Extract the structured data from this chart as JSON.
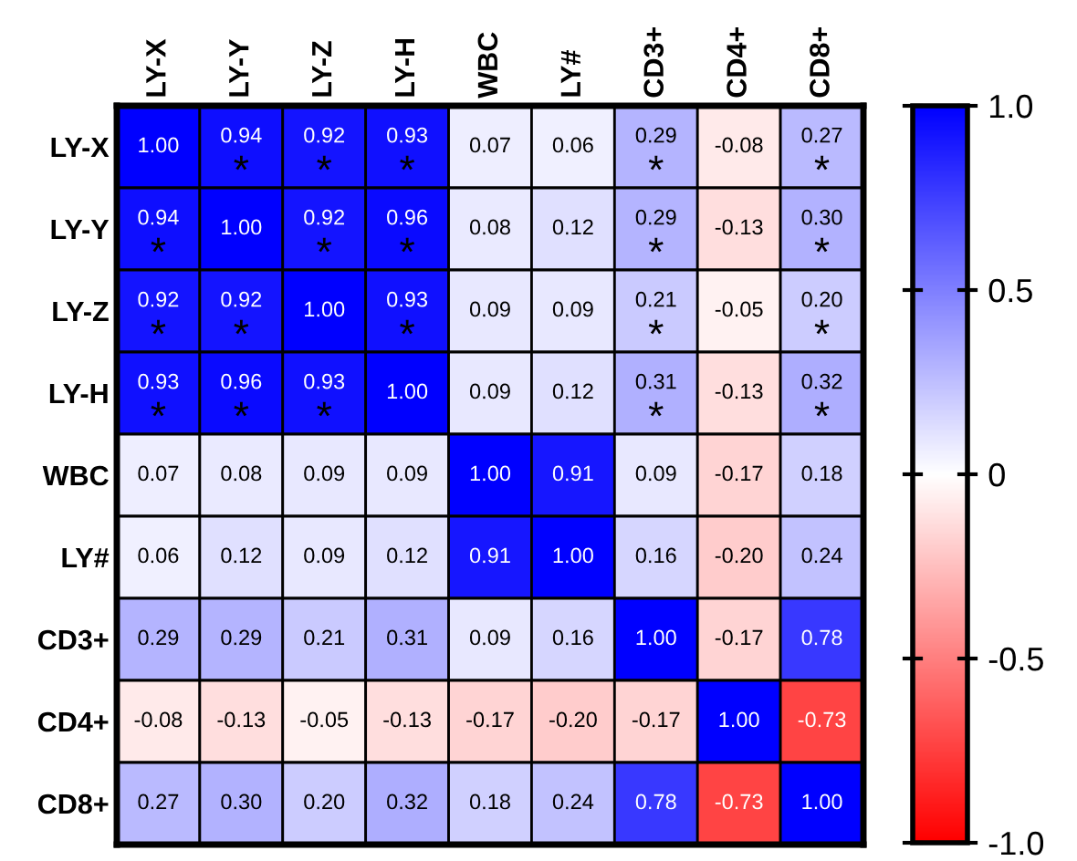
{
  "chart_data": {
    "type": "heatmap",
    "categories": [
      "LY-X",
      "LY-Y",
      "LY-Z",
      "LY-H",
      "WBC",
      "LY#",
      "CD3+",
      "CD4+",
      "CD8+"
    ],
    "y_categories": [
      "LY-X",
      "LY-Y",
      "LY-Z",
      "LY-H",
      "WBC",
      "LY#",
      "CD3+",
      "CD4+",
      "CD8+"
    ],
    "cells": [
      [
        1.0,
        0.94,
        0.92,
        0.93,
        0.07,
        0.06,
        0.29,
        -0.08,
        0.27
      ],
      [
        0.94,
        1.0,
        0.92,
        0.96,
        0.08,
        0.12,
        0.29,
        -0.13,
        0.3
      ],
      [
        0.92,
        0.92,
        1.0,
        0.93,
        0.09,
        0.09,
        0.21,
        -0.05,
        0.2
      ],
      [
        0.93,
        0.96,
        0.93,
        1.0,
        0.09,
        0.12,
        0.31,
        -0.13,
        0.32
      ],
      [
        0.07,
        0.08,
        0.09,
        0.09,
        1.0,
        0.91,
        0.09,
        -0.17,
        0.18
      ],
      [
        0.06,
        0.12,
        0.09,
        0.12,
        0.91,
        1.0,
        0.16,
        -0.2,
        0.24
      ],
      [
        0.29,
        0.29,
        0.21,
        0.31,
        0.09,
        0.16,
        1.0,
        -0.17,
        0.78
      ],
      [
        -0.08,
        -0.13,
        -0.05,
        -0.13,
        -0.17,
        -0.2,
        -0.17,
        1.0,
        -0.73
      ],
      [
        0.27,
        0.3,
        0.2,
        0.32,
        0.18,
        0.24,
        0.78,
        -0.73,
        1.0
      ]
    ],
    "cell_labels": [
      [
        "1.00",
        "0.94\n*",
        "0.92\n*",
        "0.93\n*",
        "0.07",
        "0.06",
        "0.29\n*",
        "-0.08",
        "0.27\n*"
      ],
      [
        "0.94\n*",
        "1.00",
        "0.92\n*",
        "0.96\n*",
        "0.08",
        "0.12",
        "0.29\n*",
        "-0.13",
        "0.30\n*"
      ],
      [
        "0.92\n*",
        "0.92\n*",
        "1.00",
        "0.93\n*",
        "0.09",
        "0.09",
        "0.21\n*",
        "-0.05",
        "0.20\n*"
      ],
      [
        "0.93\n*",
        "0.96\n*",
        "0.93\n*",
        "1.00",
        "0.09",
        "0.12",
        "0.31\n*",
        "-0.13",
        "0.32\n*"
      ],
      [
        "0.07",
        "0.08",
        "0.09",
        "0.09",
        "1.00",
        "0.91",
        "0.09",
        "-0.17",
        "0.18"
      ],
      [
        "0.06",
        "0.12",
        "0.09",
        "0.12",
        "0.91",
        "1.00",
        "0.16",
        "-0.20",
        "0.24"
      ],
      [
        "0.29",
        "0.29",
        "0.21",
        "0.31",
        "0.09",
        "0.16",
        "1.00",
        "-0.17",
        "0.78"
      ],
      [
        "-0.08",
        "-0.13",
        "-0.05",
        "-0.13",
        "-0.17",
        "-0.20",
        "-0.17",
        "1.00",
        "-0.73"
      ],
      [
        "0.27",
        "0.30",
        "0.20",
        "0.32",
        "0.18",
        "0.24",
        "0.78",
        "-0.73",
        "1.00"
      ]
    ],
    "clim": [
      -1.0,
      1.0
    ],
    "cticks": [
      {
        "value": 1.0,
        "label": "1.0"
      },
      {
        "value": 0.5,
        "label": "0.5"
      },
      0,
      {
        "value": -0.5,
        "label": "-0.5"
      },
      {
        "value": -1.0,
        "label": "-1.0"
      }
    ]
  }
}
